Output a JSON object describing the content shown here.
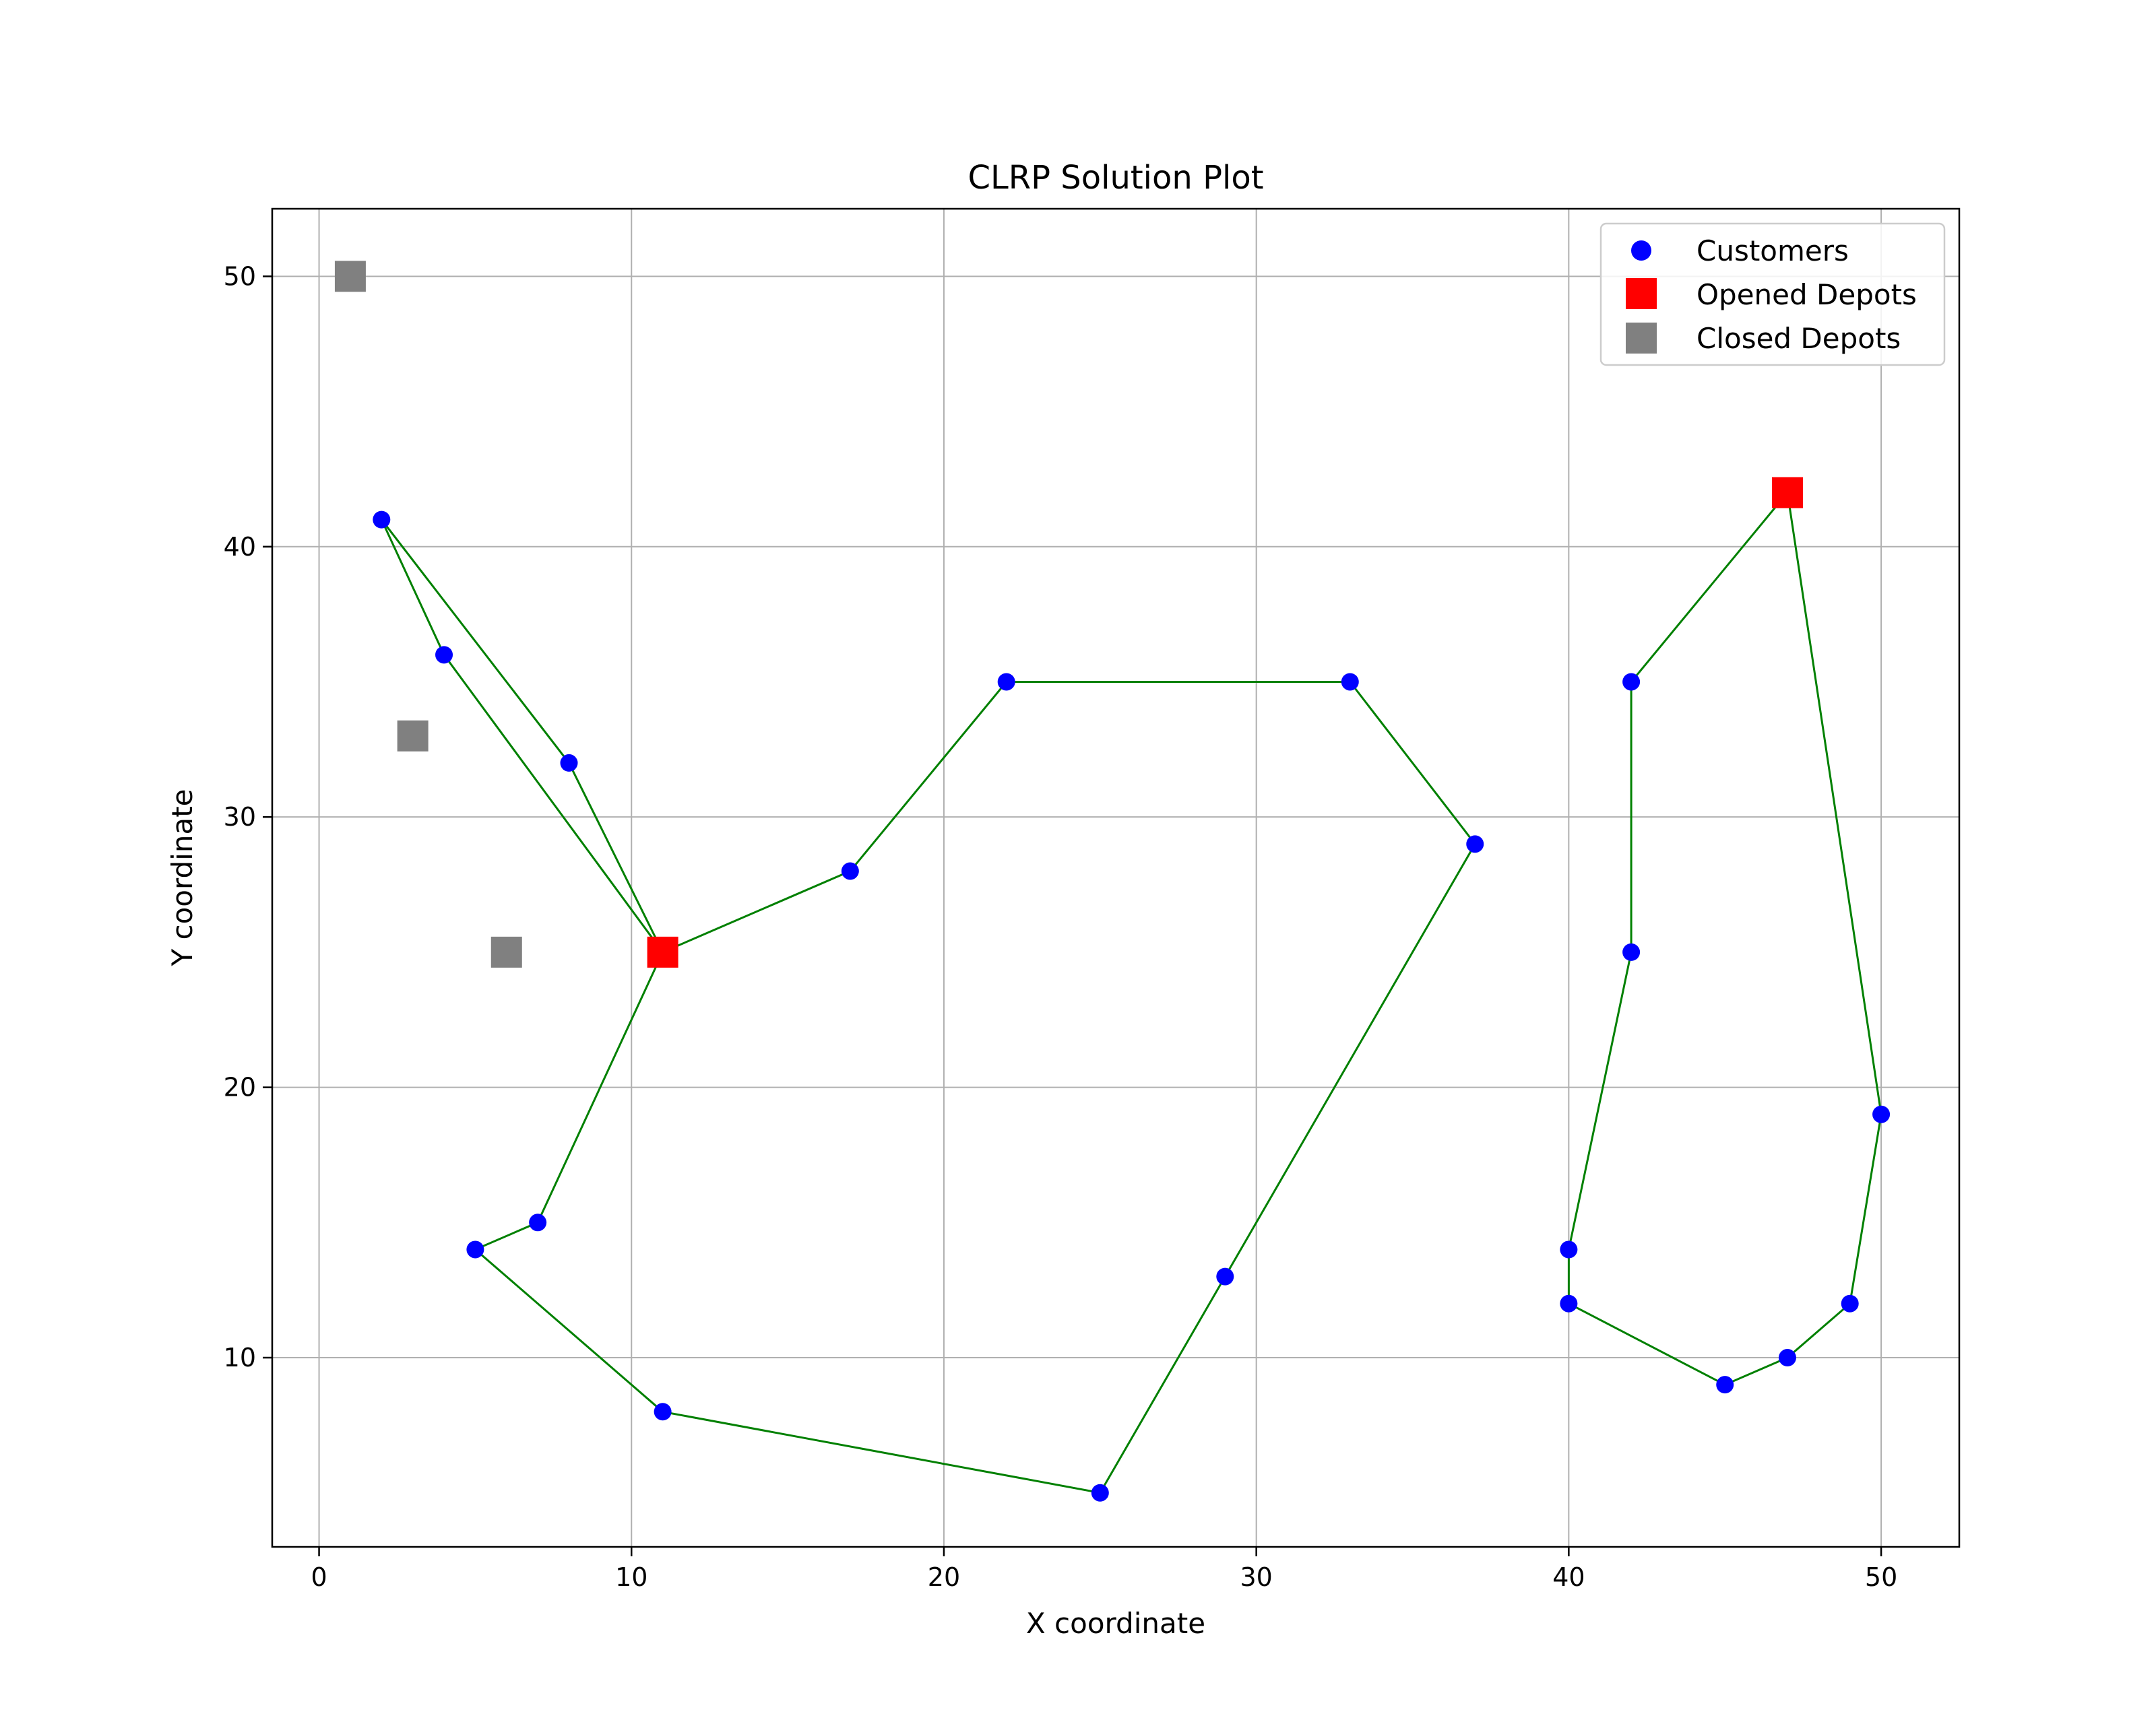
{
  "chart_data": {
    "type": "scatter",
    "title": "CLRP Solution Plot",
    "xlabel": "X coordinate",
    "ylabel": "Y coordinate",
    "xlim": [
      -1.5,
      52.5
    ],
    "ylim": [
      3.0,
      52.5
    ],
    "x_ticks": [
      0,
      10,
      20,
      30,
      40,
      50
    ],
    "y_ticks": [
      10,
      20,
      30,
      40,
      50
    ],
    "grid": true,
    "legend_position": "top-right",
    "colors": {
      "customers": "#0000ff",
      "opened_depots": "#ff0000",
      "closed_depots": "#808080",
      "routes": "#008000",
      "grid": "#b0b0b0"
    },
    "series": [
      {
        "name": "Customers",
        "marker": "circle",
        "points": [
          [
            2,
            41
          ],
          [
            4,
            36
          ],
          [
            8,
            32
          ],
          [
            17,
            28
          ],
          [
            22,
            35
          ],
          [
            33,
            35
          ],
          [
            37,
            29
          ],
          [
            29,
            13
          ],
          [
            25,
            5
          ],
          [
            11,
            8
          ],
          [
            5,
            14
          ],
          [
            7,
            15
          ],
          [
            42,
            35
          ],
          [
            42,
            25
          ],
          [
            40,
            14
          ],
          [
            40,
            12
          ],
          [
            45,
            9
          ],
          [
            47,
            10
          ],
          [
            49,
            12
          ],
          [
            50,
            19
          ]
        ]
      },
      {
        "name": "Opened Depots",
        "marker": "square",
        "points": [
          [
            11,
            25
          ],
          [
            47,
            42
          ]
        ]
      },
      {
        "name": "Closed Depots",
        "marker": "square",
        "points": [
          [
            1,
            50
          ],
          [
            3,
            33
          ],
          [
            6,
            25
          ]
        ]
      }
    ],
    "routes": [
      [
        [
          11,
          25
        ],
        [
          8,
          32
        ],
        [
          2,
          41
        ],
        [
          4,
          36
        ],
        [
          11,
          25
        ]
      ],
      [
        [
          11,
          25
        ],
        [
          17,
          28
        ],
        [
          22,
          35
        ],
        [
          33,
          35
        ],
        [
          37,
          29
        ],
        [
          29,
          13
        ],
        [
          25,
          5
        ],
        [
          11,
          8
        ],
        [
          5,
          14
        ],
        [
          7,
          15
        ],
        [
          11,
          25
        ]
      ],
      [
        [
          47,
          42
        ],
        [
          42,
          35
        ],
        [
          42,
          25
        ],
        [
          40,
          14
        ],
        [
          40,
          12
        ],
        [
          45,
          9
        ],
        [
          47,
          10
        ],
        [
          49,
          12
        ],
        [
          50,
          19
        ],
        [
          47,
          42
        ]
      ]
    ]
  }
}
